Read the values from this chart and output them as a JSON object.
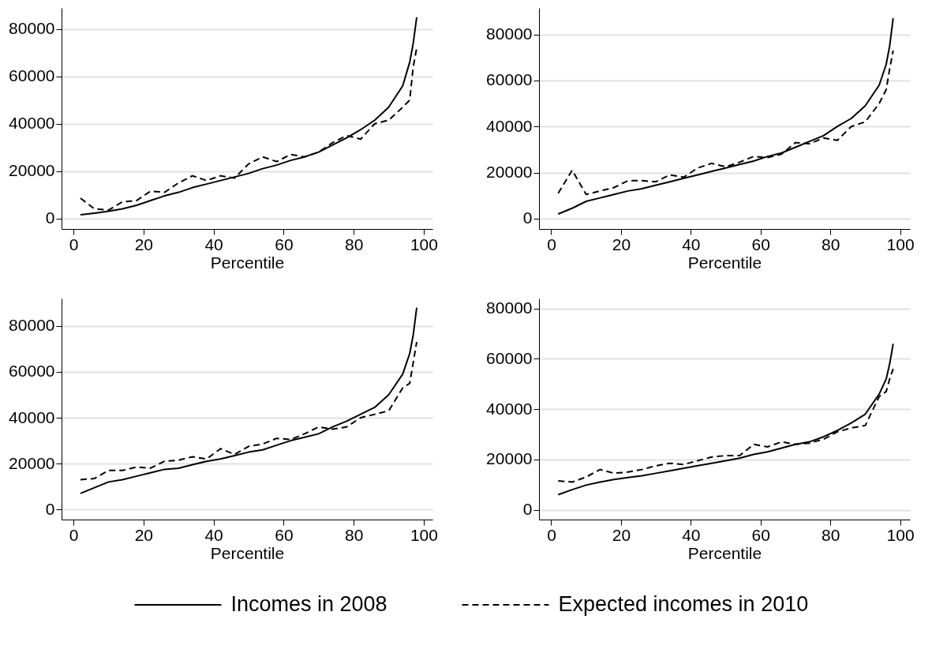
{
  "chart_data": [
    {
      "type": "line",
      "xlabel": "Percentile",
      "x": [
        2,
        6,
        10,
        14,
        18,
        22,
        26,
        30,
        34,
        38,
        42,
        46,
        50,
        54,
        58,
        62,
        66,
        70,
        74,
        78,
        82,
        86,
        90,
        94,
        96,
        97,
        98
      ],
      "xlim": [
        -3.4,
        102.5
      ],
      "xticks": [
        0,
        20,
        40,
        60,
        80,
        100
      ],
      "ylim": [
        -4500,
        89000
      ],
      "yticks": [
        0,
        20000,
        40000,
        60000,
        80000
      ],
      "grid": "y",
      "legend": "bottom",
      "marker": "none",
      "series": [
        {
          "name": "Incomes in 2008",
          "color": "#000000",
          "line_style": "solid",
          "values": [
            1500,
            2200,
            3000,
            4000,
            5500,
            7500,
            9500,
            11000,
            13000,
            14500,
            16000,
            17500,
            19000,
            21000,
            22500,
            24500,
            26000,
            28000,
            31000,
            34000,
            37500,
            41500,
            47000,
            56000,
            66000,
            74000,
            85000
          ]
        },
        {
          "name": "Expected incomes in 2010",
          "color": "#000000",
          "line_style": "dashed",
          "values": [
            8500,
            4000,
            3500,
            7000,
            7500,
            11500,
            11000,
            15000,
            18000,
            16000,
            18000,
            17000,
            23000,
            26000,
            24000,
            27000,
            26000,
            28000,
            32000,
            35000,
            33500,
            40000,
            41500,
            47000,
            50000,
            64000,
            72000
          ]
        }
      ]
    },
    {
      "type": "line",
      "xlabel": "Percentile",
      "x": [
        2,
        6,
        10,
        14,
        18,
        22,
        26,
        30,
        34,
        38,
        42,
        46,
        50,
        54,
        58,
        62,
        66,
        70,
        74,
        78,
        82,
        86,
        90,
        94,
        96,
        97,
        98
      ],
      "xlim": [
        -3.5,
        102.8
      ],
      "xticks": [
        0,
        20,
        40,
        60,
        80,
        100
      ],
      "ylim": [
        -4500,
        91500
      ],
      "yticks": [
        0,
        20000,
        40000,
        60000,
        80000
      ],
      "grid": "y",
      "legend": "bottom",
      "marker": "none",
      "series": [
        {
          "name": "Incomes in 2008",
          "color": "#000000",
          "line_style": "solid",
          "values": [
            2000,
            4500,
            7500,
            9000,
            10500,
            12000,
            13000,
            14500,
            16000,
            17500,
            19000,
            20500,
            22000,
            23500,
            25000,
            27000,
            28500,
            31000,
            33500,
            36000,
            40000,
            43500,
            49000,
            58000,
            67000,
            75000,
            87000
          ]
        },
        {
          "name": "Expected incomes in 2010",
          "color": "#000000",
          "line_style": "dashed",
          "values": [
            11000,
            21000,
            10500,
            12000,
            13500,
            16500,
            16500,
            16000,
            19000,
            18000,
            22000,
            24000,
            22500,
            24500,
            27000,
            26500,
            28000,
            33000,
            32500,
            35000,
            34000,
            40000,
            42000,
            50000,
            56000,
            65000,
            73000
          ]
        }
      ]
    },
    {
      "type": "line",
      "xlabel": "Percentile",
      "x": [
        2,
        6,
        10,
        14,
        18,
        22,
        26,
        30,
        34,
        38,
        42,
        46,
        50,
        54,
        58,
        62,
        66,
        70,
        74,
        78,
        82,
        86,
        90,
        94,
        96,
        97,
        98
      ],
      "xlim": [
        -3.4,
        102.5
      ],
      "xticks": [
        0,
        20,
        40,
        60,
        80,
        100
      ],
      "ylim": [
        -4400,
        92000
      ],
      "yticks": [
        0,
        20000,
        40000,
        60000,
        80000
      ],
      "grid": "y",
      "legend": "bottom",
      "marker": "none",
      "series": [
        {
          "name": "Incomes in 2008",
          "color": "#000000",
          "line_style": "solid",
          "values": [
            7000,
            9500,
            12000,
            13000,
            14500,
            16000,
            17500,
            18000,
            19500,
            21000,
            22000,
            23500,
            25000,
            26000,
            28000,
            30000,
            31500,
            33000,
            36000,
            38500,
            41500,
            44500,
            50000,
            59000,
            68000,
            76000,
            88000
          ]
        },
        {
          "name": "Expected incomes in 2010",
          "color": "#000000",
          "line_style": "dashed",
          "values": [
            13000,
            13500,
            17000,
            17000,
            18500,
            18000,
            21000,
            21500,
            23000,
            22000,
            26500,
            24000,
            27500,
            28500,
            31000,
            30500,
            33000,
            36000,
            35000,
            36000,
            40000,
            41500,
            43000,
            53000,
            55000,
            64000,
            73000
          ]
        }
      ]
    },
    {
      "type": "line",
      "xlabel": "Percentile",
      "x": [
        2,
        6,
        10,
        14,
        18,
        22,
        26,
        30,
        34,
        38,
        42,
        46,
        50,
        54,
        58,
        62,
        66,
        70,
        74,
        78,
        82,
        86,
        90,
        94,
        96,
        97,
        98
      ],
      "xlim": [
        -3.5,
        102.8
      ],
      "xticks": [
        0,
        20,
        40,
        60,
        80,
        100
      ],
      "ylim": [
        -3900,
        84000
      ],
      "yticks": [
        0,
        20000,
        40000,
        60000,
        80000
      ],
      "grid": "y",
      "legend": "bottom",
      "marker": "none",
      "series": [
        {
          "name": "Incomes in 2008",
          "color": "#000000",
          "line_style": "solid",
          "values": [
            6000,
            8000,
            9800,
            11000,
            12000,
            12800,
            13500,
            14500,
            15500,
            16500,
            17500,
            18500,
            19500,
            20500,
            22000,
            23000,
            24500,
            26000,
            27000,
            29000,
            31500,
            34500,
            38000,
            46000,
            52000,
            58000,
            66000
          ]
        },
        {
          "name": "Expected incomes in 2010",
          "color": "#000000",
          "line_style": "dashed",
          "values": [
            11500,
            11000,
            13000,
            16000,
            14500,
            15000,
            16000,
            17500,
            18500,
            18000,
            19500,
            21000,
            21500,
            21500,
            26000,
            25000,
            27000,
            26000,
            26500,
            28000,
            31000,
            32500,
            33500,
            45000,
            47000,
            52000,
            56000
          ]
        }
      ]
    }
  ]
}
